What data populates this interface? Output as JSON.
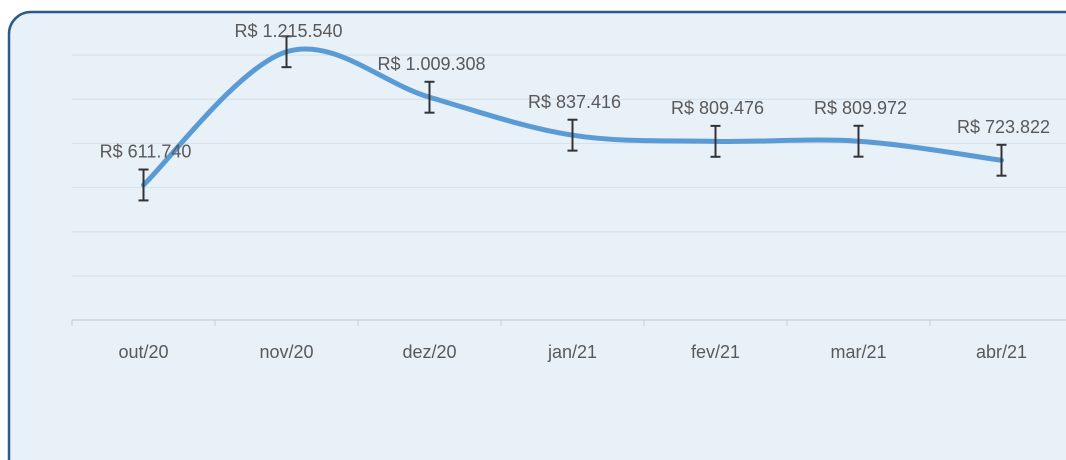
{
  "chart_data": {
    "type": "line",
    "categories": [
      "out/20",
      "nov/20",
      "dez/20",
      "jan/21",
      "fev/21",
      "mar/21",
      "abr/21"
    ],
    "series": [
      {
        "color": "#5b9bd5",
        "values": [
          611740,
          1215540,
          1009308,
          837416,
          809476,
          809972,
          723822
        ],
        "value_labels": [
          "R$ 611.740",
          "R$ 1.215.540",
          "R$ 1.009.308",
          "R$ 837.416",
          "R$ 809.476",
          "R$ 809.972",
          "R$ 723.822"
        ],
        "errors": [
          70000,
          70000,
          70000,
          70000,
          70000,
          70000,
          70000
        ]
      }
    ],
    "ylim": [
      0,
      1400000
    ],
    "yticks": [
      0,
      200000,
      400000,
      600000,
      800000,
      1000000,
      1200000
    ],
    "grid": true
  }
}
